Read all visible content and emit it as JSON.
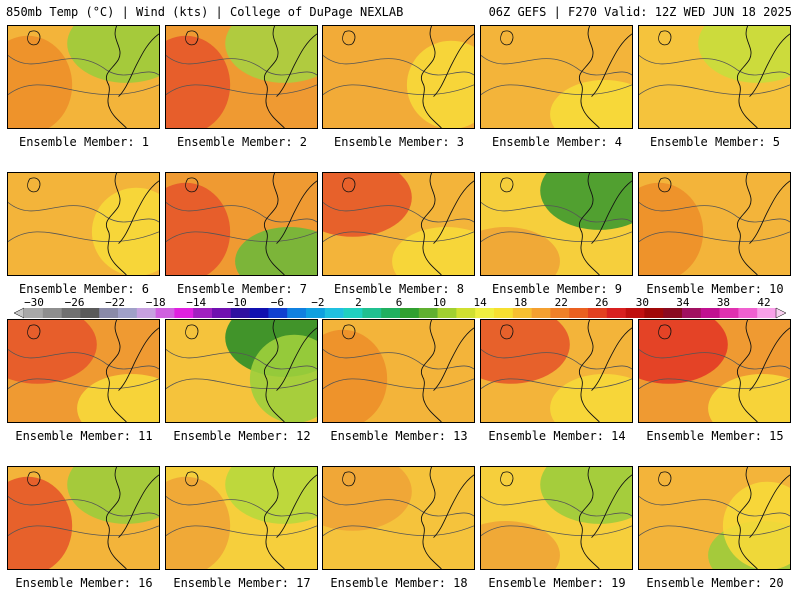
{
  "header": {
    "left": "850mb Temp (°C) | Wind (kts) | College of DuPage NEXLAB",
    "right": "06Z GEFS | F270 Valid: 12Z WED JUN 18 2025"
  },
  "members": [
    {
      "label": "Ensemble Member: 1",
      "base": "#f3b43a",
      "blobs": [
        {
          "c": "#9ccc3c",
          "a": "ne"
        },
        {
          "c": "#ed8f2a",
          "a": "w"
        }
      ]
    },
    {
      "label": "Ensemble Member: 2",
      "base": "#ef9a32",
      "blobs": [
        {
          "c": "#e5582a",
          "a": "w"
        },
        {
          "c": "#a8d040",
          "a": "ne"
        }
      ]
    },
    {
      "label": "Ensemble Member: 3",
      "base": "#f2ab38",
      "blobs": [
        {
          "c": "#f7d93a",
          "a": "e"
        }
      ]
    },
    {
      "label": "Ensemble Member: 4",
      "base": "#f3b43a",
      "blobs": [
        {
          "c": "#f7dc3a",
          "a": "se"
        }
      ]
    },
    {
      "label": "Ensemble Member: 5",
      "base": "#f5c33c",
      "blobs": [
        {
          "c": "#c8de3c",
          "a": "ne"
        }
      ]
    },
    {
      "label": "Ensemble Member: 6",
      "base": "#f3b43a",
      "blobs": [
        {
          "c": "#f7d93a",
          "a": "e"
        }
      ]
    },
    {
      "label": "Ensemble Member: 7",
      "base": "#ef9a32",
      "blobs": [
        {
          "c": "#e5582a",
          "a": "w"
        },
        {
          "c": "#6fb83a",
          "a": "se"
        }
      ]
    },
    {
      "label": "Ensemble Member: 8",
      "base": "#f3b43a",
      "blobs": [
        {
          "c": "#e5582a",
          "a": "nw"
        },
        {
          "c": "#f7d93a",
          "a": "se"
        }
      ]
    },
    {
      "label": "Ensemble Member: 9",
      "base": "#f6cf3c",
      "blobs": [
        {
          "c": "#3f9a2f",
          "a": "ne"
        },
        {
          "c": "#f0a436",
          "a": "sw"
        }
      ]
    },
    {
      "label": "Ensemble Member: 10",
      "base": "#f3b43a",
      "blobs": [
        {
          "c": "#ed8f2a",
          "a": "w"
        }
      ]
    },
    {
      "label": "Ensemble Member: 11",
      "base": "#ef9a32",
      "blobs": [
        {
          "c": "#e5582a",
          "a": "nw"
        },
        {
          "c": "#f7d93a",
          "a": "se"
        }
      ]
    },
    {
      "label": "Ensemble Member: 12",
      "base": "#f5c33c",
      "blobs": [
        {
          "c": "#2e8f28",
          "a": "ne"
        },
        {
          "c": "#9fcf3c",
          "a": "e"
        }
      ]
    },
    {
      "label": "Ensemble Member: 13",
      "base": "#f3b43a",
      "blobs": [
        {
          "c": "#ed8f2a",
          "a": "w"
        }
      ]
    },
    {
      "label": "Ensemble Member: 14",
      "base": "#f3b43a",
      "blobs": [
        {
          "c": "#e5582a",
          "a": "nw"
        },
        {
          "c": "#f7d93a",
          "a": "se"
        }
      ]
    },
    {
      "label": "Ensemble Member: 15",
      "base": "#ef9a32",
      "blobs": [
        {
          "c": "#e23a25",
          "a": "nw"
        },
        {
          "c": "#f7d93a",
          "a": "se"
        }
      ]
    },
    {
      "label": "Ensemble Member: 16",
      "base": "#f3b43a",
      "blobs": [
        {
          "c": "#e5582a",
          "a": "w"
        },
        {
          "c": "#9ccc3c",
          "a": "ne"
        }
      ]
    },
    {
      "label": "Ensemble Member: 17",
      "base": "#f6cf3c",
      "blobs": [
        {
          "c": "#f0a436",
          "a": "w"
        },
        {
          "c": "#b8d83c",
          "a": "ne"
        }
      ]
    },
    {
      "label": "Ensemble Member: 18",
      "base": "#f5c33c",
      "blobs": [
        {
          "c": "#f0a436",
          "a": "nw"
        }
      ]
    },
    {
      "label": "Ensemble Member: 19",
      "base": "#f6cf3c",
      "blobs": [
        {
          "c": "#9ccc3c",
          "a": "ne"
        },
        {
          "c": "#f0a436",
          "a": "sw"
        }
      ]
    },
    {
      "label": "Ensemble Member: 20",
      "base": "#f3b43a",
      "blobs": [
        {
          "c": "#9ccc3c",
          "a": "se"
        },
        {
          "c": "#f7d93a",
          "a": "e"
        }
      ]
    }
  ],
  "colorbar": {
    "labels": [
      "−30",
      "−26",
      "−22",
      "−18",
      "−14",
      "−10",
      "−6",
      "−2",
      "2",
      "6",
      "10",
      "14",
      "18",
      "22",
      "26",
      "30",
      "34",
      "38",
      "42"
    ],
    "colors": [
      "#a8a8a8",
      "#8e8e8e",
      "#707070",
      "#5a5a5a",
      "#8a8aa8",
      "#a0a0c8",
      "#c7a0e0",
      "#d060e0",
      "#e020e0",
      "#a020c0",
      "#7010b0",
      "#3010a0",
      "#1010b0",
      "#1040d0",
      "#1080e0",
      "#10a0e0",
      "#20c0e0",
      "#20d0c0",
      "#20c090",
      "#20b060",
      "#30a030",
      "#60b030",
      "#a0d030",
      "#d0e030",
      "#f0f040",
      "#f6e030",
      "#f6c030",
      "#f4a030",
      "#f08028",
      "#ea6020",
      "#e24020",
      "#d82020",
      "#c01010",
      "#a00808",
      "#8a0a20",
      "#a01060",
      "#c01090",
      "#e030b0",
      "#f060d0",
      "#f8a0e8"
    ]
  }
}
